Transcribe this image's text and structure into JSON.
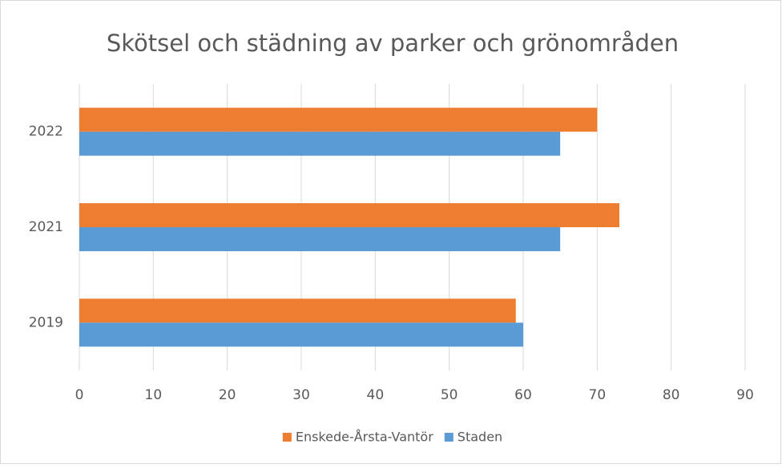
{
  "chart_data": {
    "type": "bar",
    "orientation": "horizontal",
    "title": "Skötsel och städning av parker och grönområden",
    "categories": [
      "2019",
      "2021",
      "2022"
    ],
    "series": [
      {
        "name": "Enskede-Årsta-Vantör",
        "color": "#ed7d31",
        "values": [
          59,
          73,
          70
        ]
      },
      {
        "name": "Staden",
        "color": "#5b9bd5",
        "values": [
          60,
          65,
          65
        ]
      }
    ],
    "xlim": [
      0,
      90
    ],
    "xticks": [
      0,
      10,
      20,
      30,
      40,
      50,
      60,
      70,
      80,
      90
    ],
    "grid": true,
    "legend": "bottom"
  }
}
